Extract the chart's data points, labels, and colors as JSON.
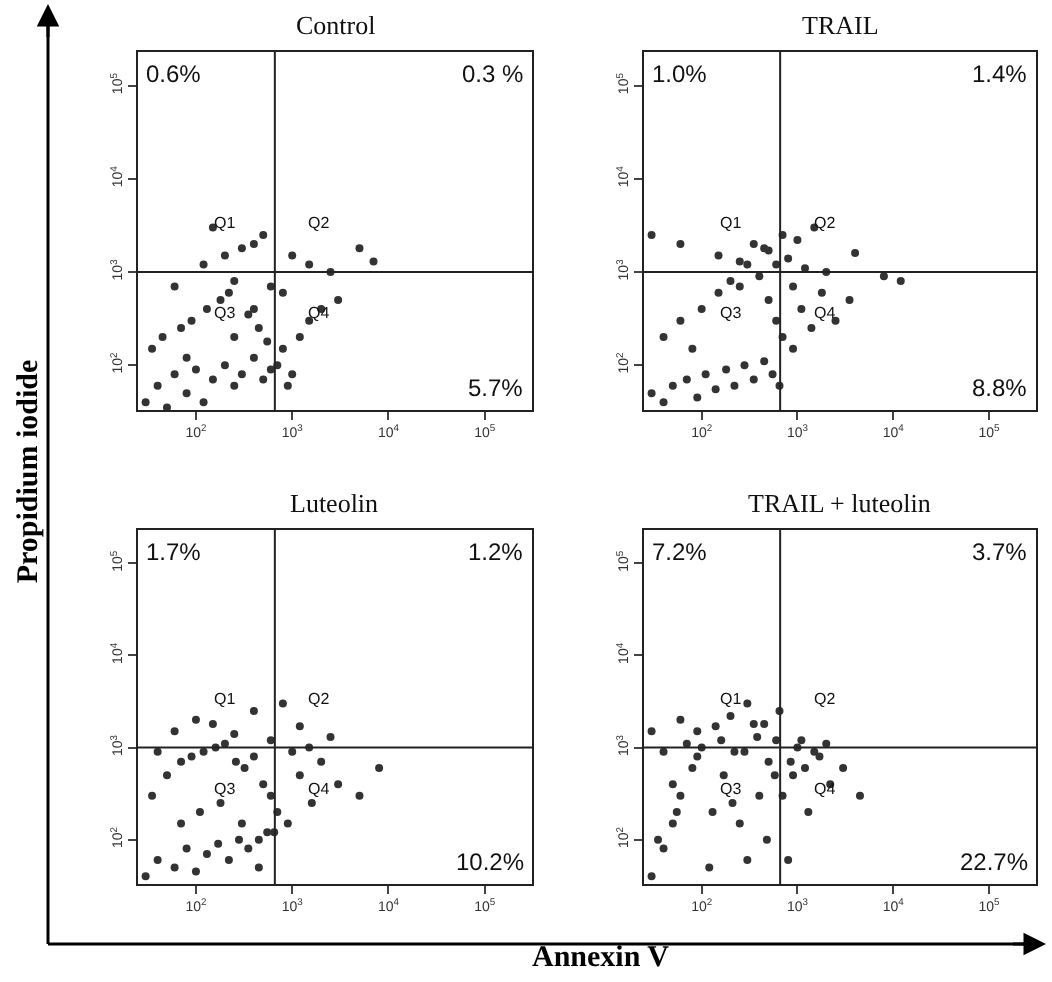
{
  "chart_data": [
    {
      "type": "scatter",
      "title": "Control",
      "ylabel": "Propidium iodide",
      "marker": "circle",
      "color": "#333333",
      "xlim": [
        25,
        310000
      ],
      "ylim": [
        33,
        230000
      ],
      "xticks": [
        {
          "value": 100,
          "label": "10$^{2}$"
        },
        {
          "value": 1000,
          "label": "10$^{3}$"
        },
        {
          "value": 10000,
          "label": "10$^{4}$"
        },
        {
          "value": 100000,
          "label": "10$^{5}$"
        }
      ],
      "yticks": [
        {
          "value": 100,
          "label": "10$^{2}$"
        },
        {
          "value": 1000,
          "label": "10$^{3}$"
        },
        {
          "value": 10000,
          "label": "10$^{4}$"
        },
        {
          "value": 100000,
          "label": "10$^{5}$"
        }
      ],
      "log": "xy",
      "x": [
        30,
        40,
        50,
        60,
        80,
        100,
        120,
        150,
        200,
        250,
        300,
        400,
        500,
        600,
        35,
        45,
        70,
        90,
        130,
        180,
        220,
        350,
        450,
        550,
        700,
        800,
        1000,
        1200,
        1500,
        2000,
        3000,
        120,
        200,
        300,
        400,
        500,
        150,
        250,
        600,
        800,
        1000,
        1500,
        2500,
        5000,
        7000,
        80,
        60,
        250,
        400,
        900
      ],
      "values": [
        40,
        60,
        35,
        80,
        50,
        90,
        40,
        70,
        100,
        60,
        80,
        120,
        70,
        90,
        150,
        200,
        250,
        300,
        400,
        500,
        600,
        350,
        250,
        180,
        100,
        150,
        80,
        200,
        300,
        400,
        500,
        1200,
        1500,
        1800,
        2000,
        2500,
        3000,
        800,
        700,
        600,
        1500,
        1200,
        1000,
        1800,
        1300,
        120,
        700,
        200,
        400,
        60
      ],
      "ref_lines": [
        {
          "axis": "x",
          "value": 660
        },
        {
          "axis": "y",
          "value": 1000
        }
      ],
      "annotations": [
        "0.6%",
        "0.3 %",
        "5.7%",
        "Q1",
        "Q2",
        "Q3",
        "Q4"
      ]
    },
    {
      "type": "scatter",
      "title": "TRAIL",
      "marker": "circle",
      "color": "#333333",
      "xlim": [
        25,
        310000
      ],
      "ylim": [
        33,
        230000
      ],
      "xticks": [
        {
          "value": 100,
          "label": "10$^{2}$"
        },
        {
          "value": 1000,
          "label": "10$^{3}$"
        },
        {
          "value": 10000,
          "label": "10$^{4}$"
        },
        {
          "value": 100000,
          "label": "10$^{5}$"
        }
      ],
      "yticks": [
        {
          "value": 100,
          "label": "10$^{2}$"
        },
        {
          "value": 1000,
          "label": "10$^{3}$"
        },
        {
          "value": 10000,
          "label": "10$^{4}$"
        },
        {
          "value": 100000,
          "label": "10$^{5}$"
        }
      ],
      "log": "xy",
      "x": [
        30,
        40,
        50,
        70,
        90,
        110,
        140,
        180,
        220,
        280,
        350,
        450,
        550,
        650,
        40,
        60,
        80,
        100,
        150,
        200,
        250,
        400,
        500,
        600,
        700,
        900,
        1100,
        1400,
        1800,
        2500,
        3500,
        150,
        250,
        350,
        500,
        600,
        800,
        1200,
        2000,
        4000,
        8000,
        12000,
        700,
        1000,
        1500,
        60,
        300,
        450,
        900,
        30
      ],
      "values": [
        50,
        40,
        60,
        70,
        45,
        80,
        55,
        90,
        60,
        100,
        70,
        110,
        80,
        60,
        200,
        300,
        150,
        400,
        600,
        800,
        700,
        900,
        500,
        300,
        200,
        150,
        400,
        250,
        600,
        300,
        500,
        1500,
        1300,
        2000,
        1700,
        1200,
        1400,
        1100,
        1000,
        1600,
        900,
        800,
        2500,
        2200,
        3000,
        2000,
        1200,
        1800,
        700,
        2500
      ],
      "ref_lines": [
        {
          "axis": "x",
          "value": 660
        },
        {
          "axis": "y",
          "value": 1000
        }
      ],
      "annotations": [
        "1.0%",
        "1.4%",
        "8.8%",
        "Q1",
        "Q2",
        "Q3",
        "Q4"
      ]
    },
    {
      "type": "scatter",
      "title": "Luteolin",
      "xlabel": "Annexin V",
      "marker": "circle",
      "color": "#333333",
      "xlim": [
        25,
        310000
      ],
      "ylim": [
        33,
        230000
      ],
      "xticks": [
        {
          "value": 100,
          "label": "10$^{2}$"
        },
        {
          "value": 1000,
          "label": "10$^{3}$"
        },
        {
          "value": 10000,
          "label": "10$^{4}$"
        },
        {
          "value": 100000,
          "label": "10$^{5}$"
        }
      ],
      "yticks": [
        {
          "value": 100,
          "label": "10$^{2}$"
        },
        {
          "value": 1000,
          "label": "10$^{3}$"
        },
        {
          "value": 10000,
          "label": "10$^{4}$"
        },
        {
          "value": 100000,
          "label": "10$^{5}$"
        }
      ],
      "log": "xy",
      "x": [
        30,
        40,
        60,
        80,
        100,
        130,
        170,
        220,
        280,
        350,
        450,
        550,
        35,
        50,
        70,
        90,
        120,
        160,
        200,
        260,
        320,
        400,
        500,
        600,
        700,
        900,
        1200,
        1600,
        2000,
        3000,
        5000,
        8000,
        60,
        100,
        150,
        250,
        400,
        800,
        1200,
        2500,
        70,
        110,
        180,
        300,
        450,
        650,
        1000,
        1500,
        40,
        600
      ],
      "values": [
        40,
        60,
        50,
        80,
        45,
        70,
        90,
        60,
        100,
        80,
        50,
        120,
        300,
        500,
        700,
        800,
        900,
        1000,
        1100,
        700,
        600,
        800,
        400,
        300,
        200,
        150,
        500,
        250,
        700,
        400,
        300,
        600,
        1500,
        2000,
        1800,
        1400,
        2500,
        3000,
        1700,
        1300,
        150,
        200,
        250,
        150,
        100,
        120,
        900,
        1000,
        900,
        1200
      ],
      "ref_lines": [
        {
          "axis": "x",
          "value": 660
        },
        {
          "axis": "y",
          "value": 1000
        }
      ],
      "annotations": [
        "1.7%",
        "1.2%",
        "10.2%",
        "Q1",
        "Q2",
        "Q3",
        "Q4"
      ]
    },
    {
      "type": "scatter",
      "title": "TRAIL + luteolin",
      "marker": "circle",
      "color": "#333333",
      "xlim": [
        25,
        310000
      ],
      "ylim": [
        33,
        230000
      ],
      "xticks": [
        {
          "value": 100,
          "label": "10$^{2}$"
        },
        {
          "value": 1000,
          "label": "10$^{3}$"
        },
        {
          "value": 10000,
          "label": "10$^{4}$"
        },
        {
          "value": 100000,
          "label": "10$^{5}$"
        }
      ],
      "yticks": [
        {
          "value": 100,
          "label": "10$^{2}$"
        },
        {
          "value": 1000,
          "label": "10$^{3}$"
        },
        {
          "value": 10000,
          "label": "10$^{4}$"
        },
        {
          "value": 100000,
          "label": "10$^{5}$"
        }
      ],
      "log": "xy",
      "x": [
        30,
        40,
        50,
        60,
        80,
        100,
        130,
        170,
        220,
        300,
        400,
        500,
        600,
        30,
        50,
        70,
        90,
        120,
        160,
        210,
        280,
        380,
        480,
        580,
        700,
        850,
        1000,
        1300,
        1700,
        2200,
        3000,
        4500,
        40,
        60,
        90,
        140,
        200,
        300,
        450,
        650,
        800,
        1100,
        1500,
        2000,
        35,
        55,
        250,
        350,
        900,
        1200
      ],
      "values": [
        40,
        80,
        150,
        300,
        600,
        1000,
        200,
        500,
        900,
        60,
        300,
        700,
        1200,
        1500,
        400,
        1100,
        800,
        50,
        1200,
        250,
        900,
        1300,
        100,
        500,
        300,
        700,
        1000,
        200,
        800,
        400,
        600,
        300,
        900,
        2000,
        1500,
        1700,
        2200,
        3000,
        1800,
        2500,
        60,
        1200,
        900,
        1100,
        100,
        200,
        150,
        1800,
        500,
        600
      ],
      "ref_lines": [
        {
          "axis": "x",
          "value": 660
        },
        {
          "axis": "y",
          "value": 1000
        }
      ],
      "annotations": [
        "7.2%",
        "3.7%",
        "22.7%",
        "Q1",
        "Q2",
        "Q3",
        "Q4"
      ]
    }
  ]
}
